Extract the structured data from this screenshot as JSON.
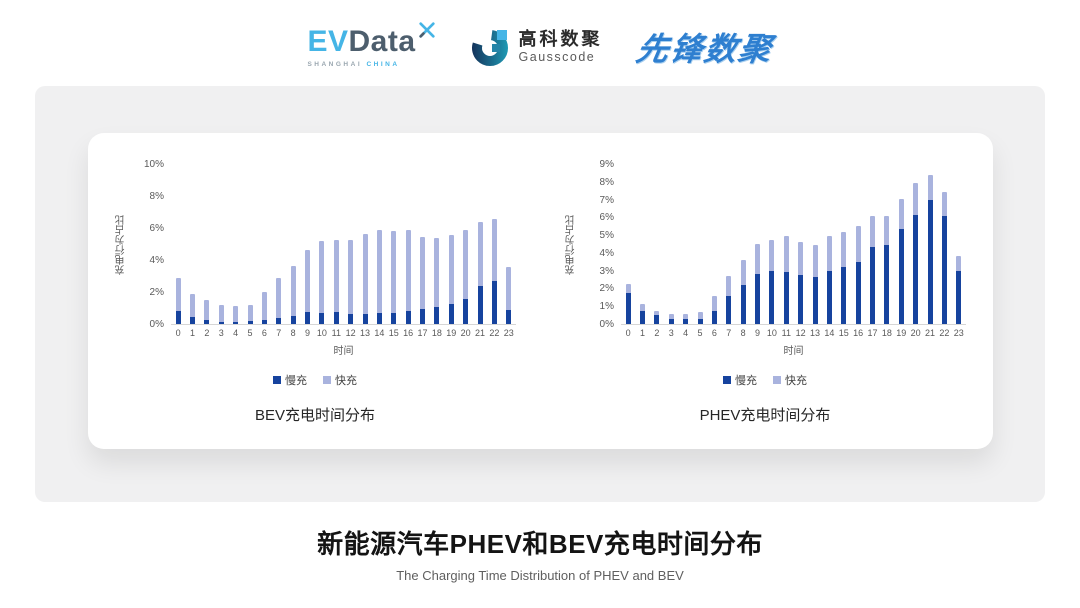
{
  "header": {
    "evdata": {
      "ev": "EV",
      "data": "Data",
      "sub_left": "SHANGHAI",
      "sub_right": "CHINA"
    },
    "gausscode": {
      "cn": "高科数聚",
      "en": "Gausscode"
    },
    "xianfeng": {
      "text": "先锋数聚"
    }
  },
  "colors": {
    "slow_charge": "#16439e",
    "fast_charge": "#a9b3de",
    "evdata_blue": "#45b5e6",
    "evdata_slate": "#4d5e6d",
    "xianfeng_blue": "#2e7fd0",
    "panel_gray": "#f0f0f1"
  },
  "chart_data": [
    {
      "type": "bar",
      "stacked": true,
      "title": "BEV充电时间分布",
      "xlabel": "时间",
      "ylabel": "充电行为占比",
      "ylim": [
        0,
        10
      ],
      "ytick_step": 2,
      "grid": false,
      "legend_position": "bottom",
      "categories": [
        "0",
        "1",
        "2",
        "3",
        "4",
        "5",
        "6",
        "7",
        "8",
        "9",
        "10",
        "11",
        "12",
        "13",
        "14",
        "15",
        "16",
        "17",
        "18",
        "19",
        "20",
        "21",
        "22",
        "23"
      ],
      "series": [
        {
          "name": "慢充",
          "color": "#16439e",
          "values": [
            0.8,
            0.45,
            0.25,
            0.15,
            0.15,
            0.2,
            0.25,
            0.4,
            0.5,
            0.75,
            0.7,
            0.75,
            0.6,
            0.65,
            0.7,
            0.7,
            0.8,
            0.95,
            1.05,
            1.25,
            1.55,
            2.35,
            2.7,
            0.85
          ]
        },
        {
          "name": "快充",
          "color": "#a9b3de",
          "values": [
            2.1,
            1.45,
            1.25,
            1.05,
            0.95,
            1.0,
            1.75,
            2.45,
            3.1,
            3.9,
            4.5,
            4.5,
            4.65,
            5.0,
            5.15,
            5.1,
            5.05,
            4.5,
            4.3,
            4.3,
            4.35,
            4.05,
            3.85,
            2.7
          ]
        }
      ]
    },
    {
      "type": "bar",
      "stacked": true,
      "title": "PHEV充电时间分布",
      "xlabel": "时间",
      "ylabel": "充电行为占比",
      "ylim": [
        0,
        9
      ],
      "ytick_step": 1,
      "grid": false,
      "legend_position": "bottom",
      "categories": [
        "0",
        "1",
        "2",
        "3",
        "4",
        "5",
        "6",
        "7",
        "8",
        "9",
        "10",
        "11",
        "12",
        "13",
        "14",
        "15",
        "16",
        "17",
        "18",
        "19",
        "20",
        "21",
        "22",
        "23"
      ],
      "series": [
        {
          "name": "慢充",
          "color": "#16439e",
          "values": [
            1.75,
            0.75,
            0.5,
            0.3,
            0.3,
            0.3,
            0.75,
            1.55,
            2.2,
            2.8,
            3.0,
            2.95,
            2.75,
            2.65,
            3.0,
            3.2,
            3.5,
            4.35,
            4.45,
            5.35,
            6.15,
            6.95,
            6.1,
            3.0
          ]
        },
        {
          "name": "快充",
          "color": "#a9b3de",
          "values": [
            0.5,
            0.4,
            0.25,
            0.25,
            0.25,
            0.35,
            0.8,
            1.15,
            1.4,
            1.7,
            1.75,
            2.0,
            1.85,
            1.8,
            1.95,
            2.0,
            2.0,
            1.75,
            1.65,
            1.7,
            1.8,
            1.45,
            1.3,
            0.85
          ]
        }
      ]
    }
  ],
  "footer": {
    "title": "新能源汽车PHEV和BEV充电时间分布",
    "subtitle": "The Charging Time Distribution of PHEV and BEV"
  }
}
